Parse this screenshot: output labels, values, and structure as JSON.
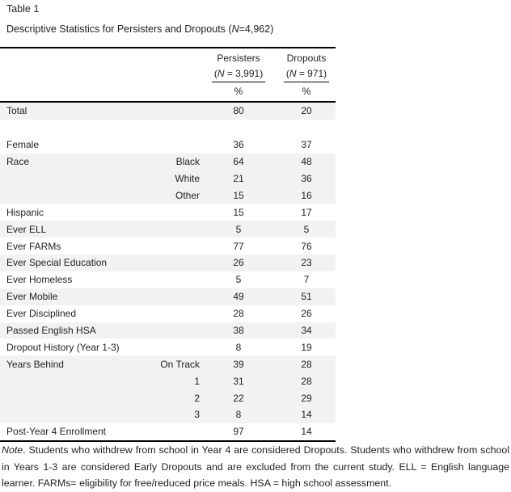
{
  "page": {
    "table_label": "Table 1",
    "caption_prefix": "Descriptive Statistics for Persisters and Dropouts (",
    "caption_italic": "N",
    "caption_suffix": "=4,962)"
  },
  "table": {
    "columns": [
      {
        "name": "Persisters",
        "n_prefix": "(",
        "n_italic": "N",
        "n_suffix": " = 3,991)",
        "unit": "%"
      },
      {
        "name": "Dropouts",
        "n_prefix": "(",
        "n_italic": "N",
        "n_suffix": " = 971)",
        "unit": "%"
      }
    ],
    "rows": [
      {
        "label": "Total",
        "sub": "",
        "persisters": "80",
        "dropouts": "20",
        "shaded": true
      },
      {
        "label": "",
        "sub": "",
        "persisters": "",
        "dropouts": "",
        "shaded": false
      },
      {
        "label": "Female",
        "sub": "",
        "persisters": "36",
        "dropouts": "37",
        "shaded": false
      },
      {
        "label": "Race",
        "sub": "Black",
        "persisters": "64",
        "dropouts": "48",
        "shaded": true
      },
      {
        "label": "",
        "sub": "White",
        "persisters": "21",
        "dropouts": "36",
        "shaded": true
      },
      {
        "label": "",
        "sub": "Other",
        "persisters": "15",
        "dropouts": "16",
        "shaded": true
      },
      {
        "label": "Hispanic",
        "sub": "",
        "persisters": "15",
        "dropouts": "17",
        "shaded": false
      },
      {
        "label": "Ever ELL",
        "sub": "",
        "persisters": "5",
        "dropouts": "5",
        "shaded": true
      },
      {
        "label": "Ever FARMs",
        "sub": "",
        "persisters": "77",
        "dropouts": "76",
        "shaded": false
      },
      {
        "label": "Ever Special Education",
        "sub": "",
        "persisters": "26",
        "dropouts": "23",
        "shaded": true
      },
      {
        "label": "Ever Homeless",
        "sub": "",
        "persisters": "5",
        "dropouts": "7",
        "shaded": false
      },
      {
        "label": "Ever Mobile",
        "sub": "",
        "persisters": "49",
        "dropouts": "51",
        "shaded": true
      },
      {
        "label": "Ever Disciplined",
        "sub": "",
        "persisters": "28",
        "dropouts": "26",
        "shaded": false
      },
      {
        "label": "Passed English HSA",
        "sub": "",
        "persisters": "38",
        "dropouts": "34",
        "shaded": true
      },
      {
        "label": "Dropout History (Year 1-3)",
        "sub": "",
        "persisters": "8",
        "dropouts": "19",
        "shaded": false
      },
      {
        "label": "Years Behind",
        "sub": "On Track",
        "persisters": "39",
        "dropouts": "28",
        "shaded": true
      },
      {
        "label": "",
        "sub": "1",
        "persisters": "31",
        "dropouts": "28",
        "shaded": true
      },
      {
        "label": "",
        "sub": "2",
        "persisters": "22",
        "dropouts": "29",
        "shaded": true
      },
      {
        "label": "",
        "sub": "3",
        "persisters": "8",
        "dropouts": "14",
        "shaded": true
      },
      {
        "label": "Post-Year 4 Enrollment",
        "sub": "",
        "persisters": "97",
        "dropouts": "14",
        "shaded": false
      }
    ]
  },
  "note": {
    "italic": "Note",
    "text": ". Students who withdrew from school in Year 4 are considered Dropouts. Students who withdrew from school in Years 1-3 are considered Early Dropouts and are excluded from the current study. ELL = English language learner. FARMs= eligibility for free/reduced price meals. HSA = high school assessment."
  },
  "colors": {
    "zebra": "#f2f2f2",
    "rule": "#000000",
    "text": "#1f1f1f"
  }
}
